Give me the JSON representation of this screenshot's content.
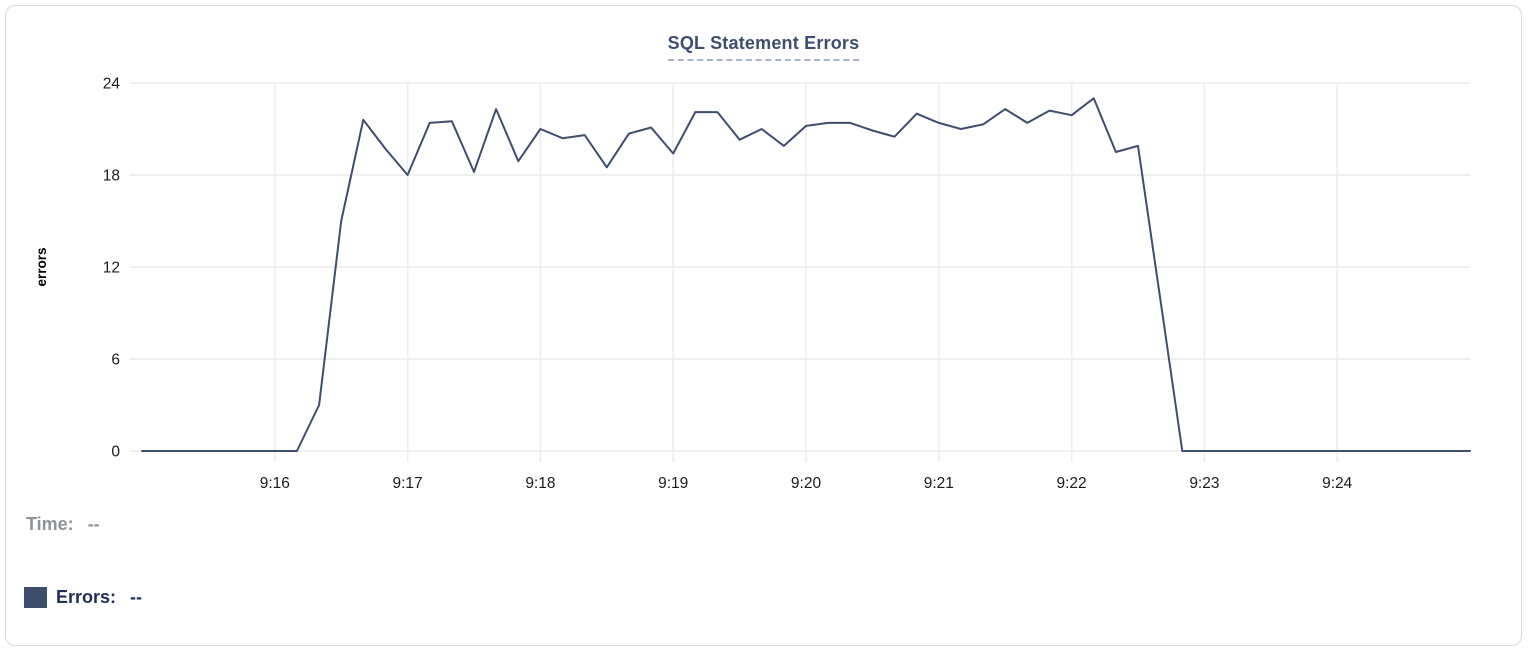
{
  "chart": {
    "title": "SQL Statement Errors"
  },
  "chart_data": {
    "type": "line",
    "title": "SQL Statement Errors",
    "xlabel": "",
    "ylabel": "errors",
    "ylim": [
      0,
      24
    ],
    "yticks": [
      0,
      6,
      12,
      18,
      24
    ],
    "x_tick_labels": [
      "9:16",
      "9:17",
      "9:18",
      "9:19",
      "9:20",
      "9:21",
      "9:22",
      "9:23",
      "9:24"
    ],
    "x_range": [
      "9:15:00",
      "9:25:00"
    ],
    "sample_interval_seconds": 10,
    "grid": true,
    "legend_position": "bottom-left",
    "series": [
      {
        "name": "Errors",
        "color": "#3f4e6e",
        "values": [
          0,
          0,
          0,
          0,
          0,
          0,
          0,
          0,
          3,
          15,
          21.6,
          19.7,
          18,
          21.4,
          21.5,
          18.2,
          22.3,
          18.9,
          21,
          20.4,
          20.6,
          18.5,
          20.7,
          21.1,
          19.4,
          22.1,
          22.1,
          20.3,
          21,
          19.9,
          21.2,
          21.4,
          21.4,
          20.9,
          20.5,
          22,
          21.4,
          21,
          21.3,
          22.3,
          21.4,
          22.2,
          21.9,
          23,
          19.5,
          19.9,
          10,
          0,
          0,
          0,
          0,
          0,
          0,
          0,
          0,
          0,
          0,
          0,
          0,
          0,
          0
        ]
      }
    ]
  },
  "legend": {
    "time_label": "Time:",
    "time_value": "--",
    "errors_label": "Errors:",
    "errors_value": "--"
  },
  "colors": {
    "title": "#3e4e6d",
    "title_underline": "#a9b4c9",
    "line": "#3f4e6e",
    "swatch": "#3e4d6c",
    "legend_muted": "#8e929a",
    "legend_dark": "#1f2e55",
    "grid": "#ececec",
    "axis_text": "#1b1b1b",
    "card_border": "#d9d9d9"
  }
}
